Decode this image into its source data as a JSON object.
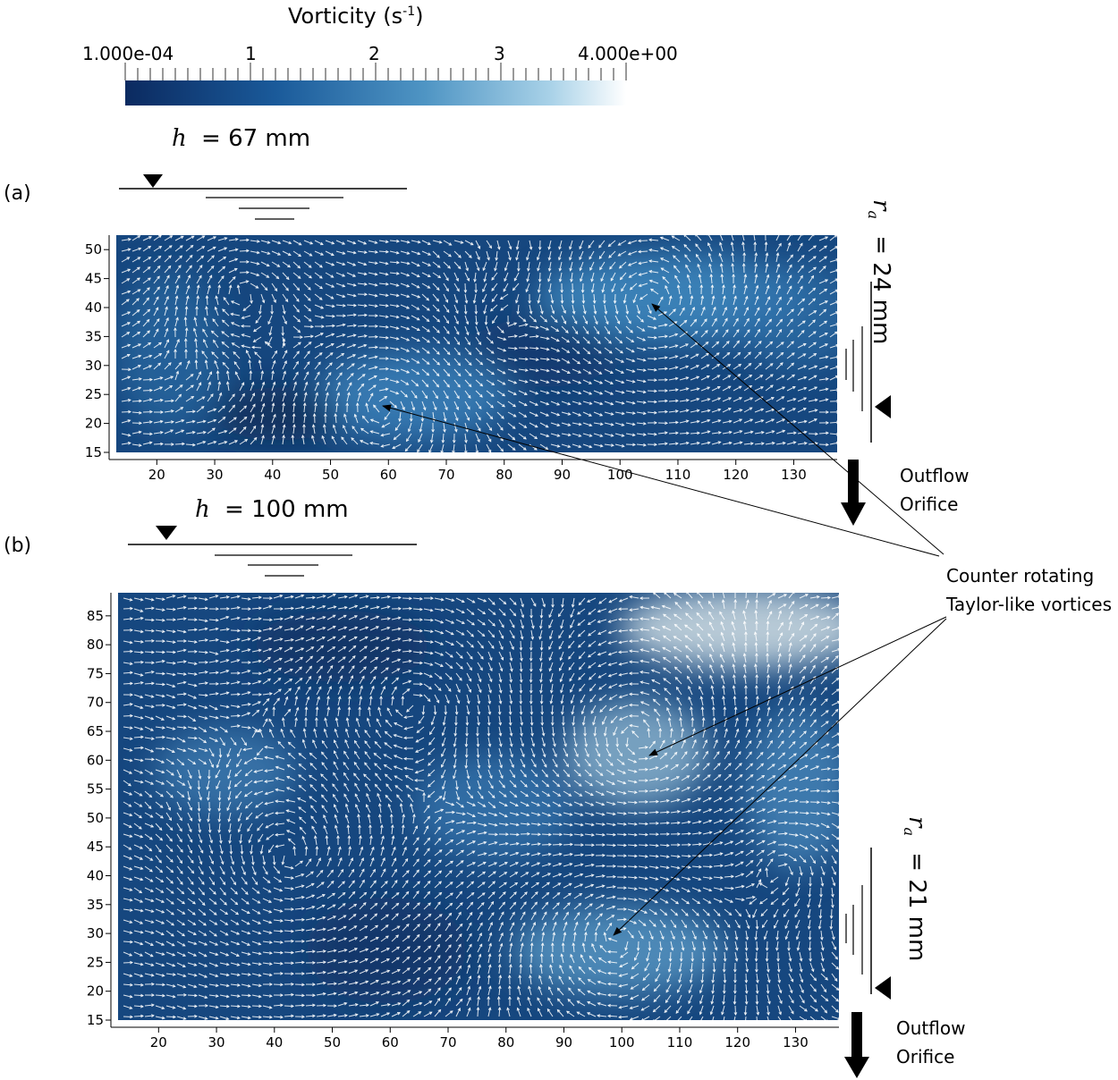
{
  "colorbar": {
    "title": "Vorticity (s",
    "title_sup": "-1",
    "title_close": ")",
    "tick_labels": [
      "1.000e-04",
      "1",
      "2",
      "3",
      "4.000e+00"
    ],
    "range": [
      0.0001,
      4.0
    ],
    "colors": [
      "#0b2a60",
      "#1a5a9a",
      "#4f95c4",
      "#a9d2e8",
      "#ffffff"
    ]
  },
  "panel_a": {
    "label": "(a)",
    "h_symbol": "h",
    "h_text": "= 67 mm",
    "ra_symbol": "r",
    "ra_sub": "a",
    "ra_text": "= 24 mm",
    "outflow_1": "Outflow",
    "outflow_2": "Orifice",
    "x_ticks": [
      "20",
      "30",
      "40",
      "50",
      "60",
      "70",
      "80",
      "90",
      "100",
      "110",
      "120",
      "130"
    ],
    "y_ticks": [
      "15",
      "20",
      "25",
      "30",
      "35",
      "40",
      "45",
      "50"
    ]
  },
  "panel_b": {
    "label": "(b)",
    "h_symbol": "h",
    "h_text": "= 100 mm",
    "ra_symbol": "r",
    "ra_sub": "a",
    "ra_text": "= 21 mm",
    "outflow_1": "Outflow",
    "outflow_2": "Orifice",
    "x_ticks": [
      "20",
      "30",
      "40",
      "50",
      "60",
      "70",
      "80",
      "90",
      "100",
      "110",
      "120",
      "130"
    ],
    "y_ticks": [
      "15",
      "20",
      "25",
      "30",
      "35",
      "40",
      "45",
      "50",
      "55",
      "60",
      "65",
      "70",
      "75",
      "80",
      "85"
    ]
  },
  "annotation": {
    "line1": "Counter rotating",
    "line2": "Taylor-like vortices"
  }
}
